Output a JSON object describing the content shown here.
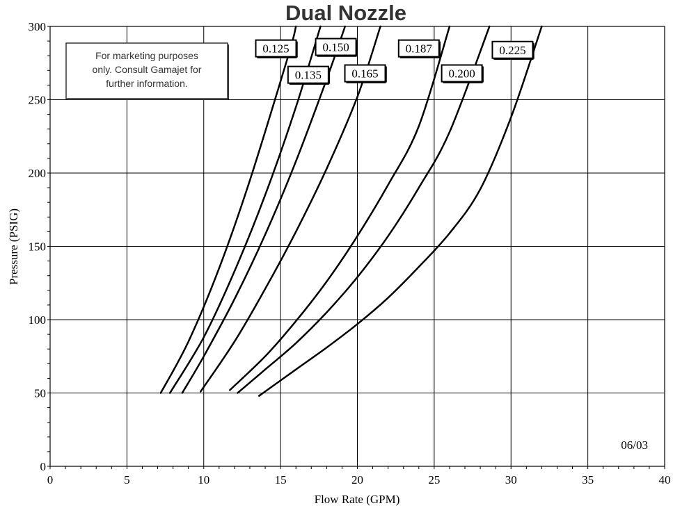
{
  "chart_data": {
    "type": "line",
    "title": "Dual Nozzle",
    "xlabel": "Flow Rate (GPM)",
    "ylabel": "Pressure (PSIG)",
    "xlim": [
      0,
      40
    ],
    "ylim": [
      0,
      300
    ],
    "x_ticks": [
      "0",
      "5",
      "10",
      "15",
      "20",
      "25",
      "30",
      "35",
      "40"
    ],
    "y_ticks": [
      "0",
      "50",
      "100",
      "150",
      "200",
      "250",
      "300"
    ],
    "grid": true,
    "note": {
      "lines": [
        "For marketing purposes",
        "only. Consult Gamajet for",
        "further information."
      ]
    },
    "stamp": "06/03",
    "series": [
      {
        "name": "0.125",
        "points": [
          [
            7.2,
            50
          ],
          [
            9,
            85
          ],
          [
            11,
            135
          ],
          [
            13,
            195
          ],
          [
            15.5,
            280
          ],
          [
            16.0,
            300
          ]
        ]
      },
      {
        "name": "0.135",
        "points": [
          [
            7.8,
            50
          ],
          [
            10,
            88
          ],
          [
            12,
            133
          ],
          [
            14,
            185
          ],
          [
            16,
            245
          ],
          [
            17.6,
            300
          ]
        ]
      },
      {
        "name": "0.150",
        "points": [
          [
            8.6,
            50
          ],
          [
            10,
            75
          ],
          [
            12,
            114
          ],
          [
            14,
            158
          ],
          [
            16,
            208
          ],
          [
            18,
            264
          ],
          [
            19.2,
            300
          ]
        ]
      },
      {
        "name": "0.165",
        "points": [
          [
            9.8,
            51
          ],
          [
            12,
            85
          ],
          [
            14,
            121
          ],
          [
            16,
            160
          ],
          [
            18,
            203
          ],
          [
            20,
            252
          ],
          [
            21.5,
            300
          ]
        ]
      },
      {
        "name": "0.187",
        "points": [
          [
            11.7,
            52
          ],
          [
            14,
            75
          ],
          [
            16,
            99
          ],
          [
            18,
            126
          ],
          [
            20,
            157
          ],
          [
            22,
            192
          ],
          [
            24,
            232
          ],
          [
            26,
            300
          ]
        ]
      },
      {
        "name": "0.200",
        "points": [
          [
            12.2,
            50
          ],
          [
            14,
            66
          ],
          [
            16,
            84
          ],
          [
            18,
            105
          ],
          [
            20,
            129
          ],
          [
            22,
            157
          ],
          [
            24,
            190
          ],
          [
            26,
            228
          ],
          [
            28.6,
            300
          ]
        ]
      },
      {
        "name": "0.225",
        "points": [
          [
            13.6,
            48
          ],
          [
            16,
            66
          ],
          [
            18,
            81
          ],
          [
            20,
            97
          ],
          [
            22,
            115
          ],
          [
            24,
            136
          ],
          [
            26,
            159
          ],
          [
            28,
            189
          ],
          [
            30,
            238
          ],
          [
            32,
            300
          ]
        ]
      }
    ],
    "label_boxes": [
      {
        "series": "0.125",
        "text": "0.125",
        "x": 14.7,
        "y": 285
      },
      {
        "series": "0.135",
        "text": "0.135",
        "x": 16.8,
        "y": 267
      },
      {
        "series": "0.150",
        "text": "0.150",
        "x": 18.6,
        "y": 286
      },
      {
        "series": "0.165",
        "text": "0.165",
        "x": 20.5,
        "y": 268
      },
      {
        "series": "0.187",
        "text": "0.187",
        "x": 24.0,
        "y": 285
      },
      {
        "series": "0.200",
        "text": "0.200",
        "x": 26.8,
        "y": 268
      },
      {
        "series": "0.225",
        "text": "0.225",
        "x": 30.1,
        "y": 284
      }
    ]
  }
}
